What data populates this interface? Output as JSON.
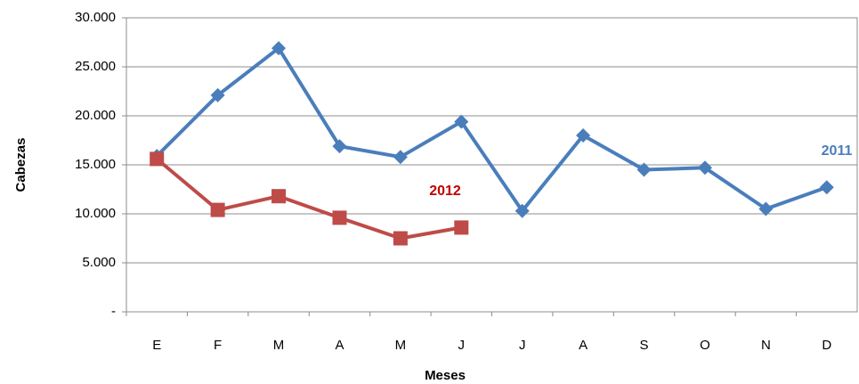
{
  "chart_data": {
    "type": "line",
    "x_label": "Meses",
    "y_label": "Cabezas",
    "categories": [
      "E",
      "F",
      "M",
      "A",
      "M",
      "J",
      "J",
      "A",
      "S",
      "O",
      "N",
      "D"
    ],
    "series": [
      {
        "name": "2011",
        "color": "#4a7ebb",
        "marker": "diamond",
        "values": [
          15900,
          22100,
          26900,
          16900,
          15800,
          19400,
          10300,
          18000,
          14500,
          14700,
          10500,
          12700
        ]
      },
      {
        "name": "2012",
        "color": "#be4b48",
        "marker": "square",
        "values": [
          15600,
          10400,
          11800,
          9600,
          7500,
          8600,
          null,
          null,
          null,
          null,
          null,
          null
        ]
      }
    ],
    "ylim": [
      0,
      30000
    ],
    "yticks": [
      {
        "value": 0,
        "label": "-"
      },
      {
        "value": 5000,
        "label": "5.000"
      },
      {
        "value": 10000,
        "label": "10.000"
      },
      {
        "value": 15000,
        "label": "15.000"
      },
      {
        "value": 20000,
        "label": "20.000"
      },
      {
        "value": 25000,
        "label": "25.000"
      },
      {
        "value": 30000,
        "label": "30.000"
      }
    ],
    "grid": true
  }
}
